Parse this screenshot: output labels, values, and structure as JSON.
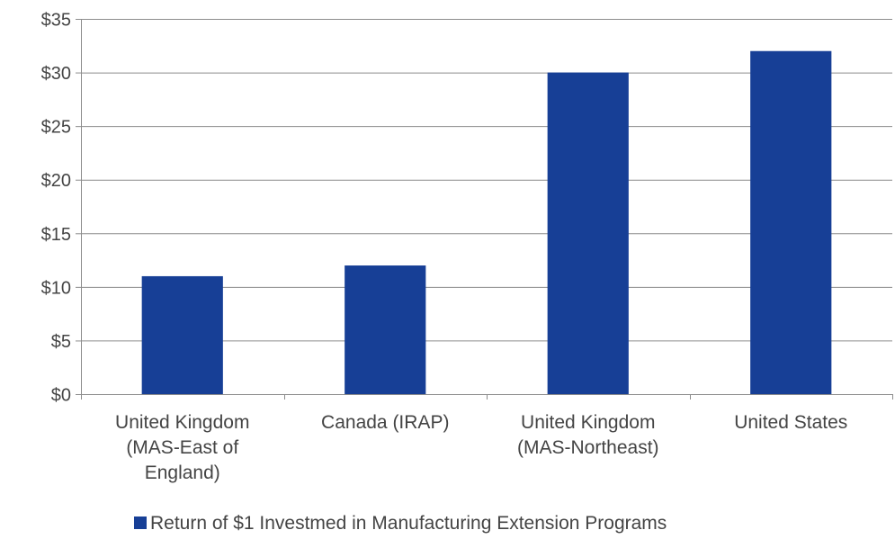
{
  "chart_data": {
    "type": "bar",
    "categories": [
      [
        "United Kingdom",
        "(MAS-East of",
        "England)"
      ],
      [
        "Canada (IRAP)"
      ],
      [
        "United Kingdom",
        "(MAS-Northeast)"
      ],
      [
        "United States"
      ]
    ],
    "series": [
      {
        "name": "Return of $1 Investmed in Manufacturing Extension Programs",
        "values": [
          11,
          12,
          30,
          32
        ]
      }
    ],
    "ylim": [
      0,
      35
    ],
    "yticks": [
      0,
      5,
      10,
      15,
      20,
      25,
      30,
      35
    ],
    "ytick_labels": [
      "$0",
      "$5",
      "$10",
      "$15",
      "$20",
      "$25",
      "$30",
      "$35"
    ],
    "grid": true,
    "legend_position": "bottom",
    "colors": {
      "bar": "#173f96",
      "grid": "#8c8c8c",
      "axis": "#8c8c8c",
      "text": "#444444"
    }
  }
}
